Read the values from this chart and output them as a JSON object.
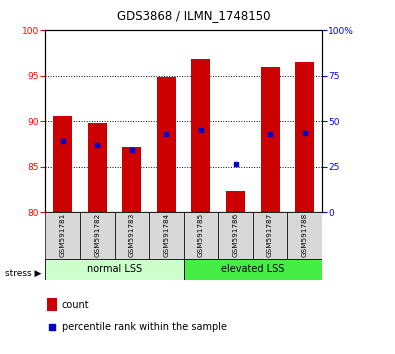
{
  "title": "GDS3868 / ILMN_1748150",
  "samples": [
    "GSM591781",
    "GSM591782",
    "GSM591783",
    "GSM591784",
    "GSM591785",
    "GSM591786",
    "GSM591787",
    "GSM591788"
  ],
  "bar_tops": [
    90.6,
    89.8,
    87.2,
    94.8,
    96.8,
    82.3,
    96.0,
    96.5
  ],
  "bar_bottom": 80.0,
  "blue_y": [
    87.8,
    87.4,
    86.8,
    88.6,
    89.0,
    85.3,
    88.6,
    88.7
  ],
  "ylim_left": [
    80,
    100
  ],
  "ylim_right": [
    0,
    100
  ],
  "yticks_left": [
    80,
    85,
    90,
    95,
    100
  ],
  "yticks_right": [
    0,
    25,
    50,
    75,
    100
  ],
  "ytick_right_labels": [
    "0",
    "25",
    "50",
    "75",
    "100%"
  ],
  "bar_color": "#cc0000",
  "blue_color": "#0000cc",
  "group1_label": "normal LSS",
  "group2_label": "elevated LSS",
  "group1_bg": "#ccffcc",
  "group2_bg": "#44ee44",
  "stress_label": "stress ▶",
  "legend1": "count",
  "legend2": "percentile rank within the sample",
  "grid_color": "black"
}
